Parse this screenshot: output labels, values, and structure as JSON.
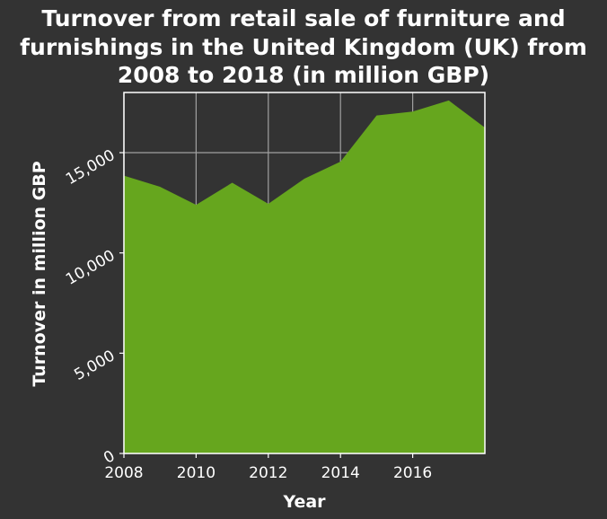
{
  "chart_data": {
    "type": "area",
    "title_lines": [
      "Turnover from retail sale of furniture and",
      "furnishings in the United Kingdom (UK) from",
      "2008 to 2018 (in million GBP)"
    ],
    "xlabel": "Year",
    "ylabel": "Turnover in million GBP",
    "x": [
      2008,
      2009,
      2010,
      2011,
      2012,
      2013,
      2014,
      2015,
      2016,
      2017,
      2018
    ],
    "series": [
      {
        "values": [
          13850,
          13300,
          12400,
          13500,
          12450,
          13700,
          14550,
          16850,
          17050,
          17600,
          16250
        ]
      }
    ],
    "xlim": [
      2008,
      2018
    ],
    "ylim": [
      0,
      18000
    ],
    "xticks": [
      2008,
      2010,
      2012,
      2014,
      2016
    ],
    "xtick_labels": [
      "2008",
      "2010",
      "2012",
      "2014",
      "2016"
    ],
    "yticks": [
      0,
      5000,
      10000,
      15000
    ],
    "ytick_labels": [
      "0",
      "5,000",
      "10,000",
      "15,000"
    ],
    "grid": true,
    "colors": {
      "background": "#333333",
      "fill": "#66a61e",
      "grid": "#a0a0a0",
      "text": "#ffffff"
    }
  }
}
